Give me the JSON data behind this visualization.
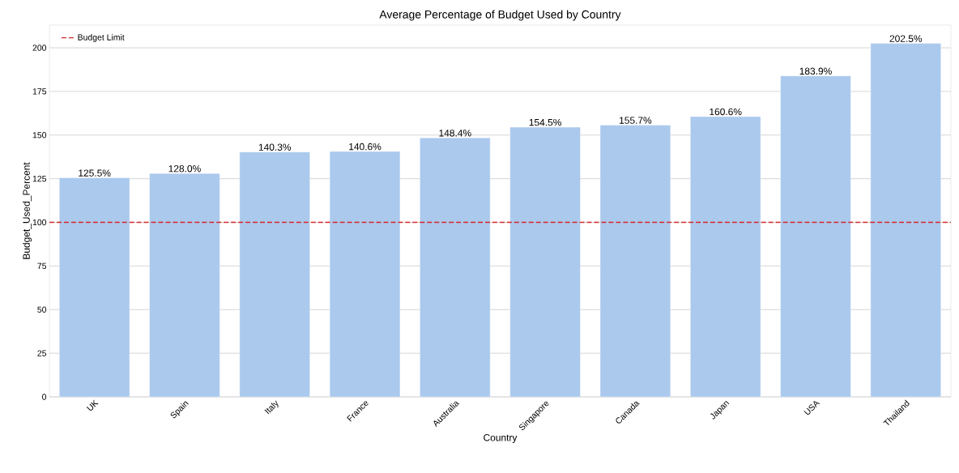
{
  "chart_data": {
    "type": "bar",
    "title": "Average Percentage of Budget Used by Country",
    "xlabel": "Country",
    "ylabel": "Budget_Used_Percent",
    "categories": [
      "UK",
      "Spain",
      "Italy",
      "France",
      "Australia",
      "Singapore",
      "Canada",
      "Japan",
      "USA",
      "Thailand"
    ],
    "values": [
      125.5,
      128.0,
      140.3,
      140.6,
      148.4,
      154.5,
      155.7,
      160.6,
      183.9,
      202.5
    ],
    "value_labels": [
      "125.5%",
      "128.0%",
      "140.3%",
      "140.6%",
      "148.4%",
      "154.5%",
      "155.7%",
      "160.6%",
      "183.9%",
      "202.5%"
    ],
    "color": "#abc9ed",
    "ylim": [
      0,
      213
    ],
    "yticks": [
      0,
      25,
      50,
      75,
      100,
      125,
      150,
      175,
      200
    ],
    "grid": "y",
    "legend": "top left",
    "ref_lines": [
      {
        "axis": "y",
        "value": 100,
        "label": "Budget Limit",
        "color": "#d62728",
        "line_style": "dashed"
      }
    ]
  }
}
